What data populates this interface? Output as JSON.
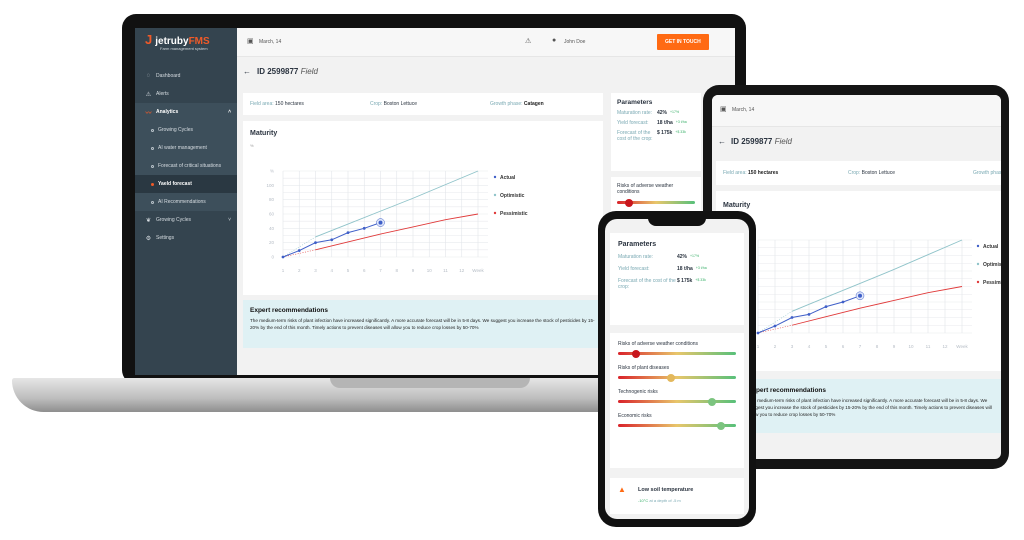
{
  "brand": {
    "name": "jetruby",
    "suffix": "FMS",
    "tagline": "Farm management system"
  },
  "sidebar": {
    "items": [
      {
        "label": "Dashboard",
        "icon": "dashboard-icon"
      },
      {
        "label": "Alerts",
        "icon": "alert-icon"
      },
      {
        "label": "Analytics",
        "icon": "analytics-icon"
      },
      {
        "label": "Growing Cycles"
      },
      {
        "label": "AI water management"
      },
      {
        "label": "Forecast of critical situations"
      },
      {
        "label": "Yaeld forecast"
      },
      {
        "label": "AI Recommendations"
      },
      {
        "label": "Growing Cycles",
        "icon": "leaf-icon"
      },
      {
        "label": "Settings",
        "icon": "gear-icon"
      }
    ]
  },
  "header": {
    "date": "March, 14",
    "user": "John Doe",
    "cta": "GET IN TOUCH"
  },
  "page": {
    "id": "ID 2599877",
    "type": "Field"
  },
  "info": {
    "area_label": "Field area:",
    "area": "150 hectares",
    "crop_label": "Crop:",
    "crop": "Boston Lettuce",
    "phase_label": "Growth phase:",
    "phase": "Catagen"
  },
  "maturity": {
    "title": "Maturity",
    "unit": "%"
  },
  "recommendations": {
    "title": "Expert recommendations",
    "text": "The medium-term risks of plant infection have increased significantly. A more accurate forecast will be in 5-8 days. We suggest you increase the stock of pesticides by 15-20% by the end of this month. Timely actions to prevent diseases will allow you to reduce crop losses by 50-70%"
  },
  "parameters": {
    "title": "Parameters",
    "rows": [
      {
        "label": "Maturation rate:",
        "value": "42%",
        "delta": "+17%"
      },
      {
        "label": "Yield forecast:",
        "value": "18 t/ha",
        "delta": "+3 t/ha"
      },
      {
        "label": "Forecast of the cost of the crop:",
        "value": "$ 175k",
        "delta": "+$ 33k"
      }
    ]
  },
  "risks": [
    {
      "label": "Risks of adverse weather conditions",
      "level": 0.15,
      "color": "#c8161d"
    },
    {
      "label": "Risks of plant diseases",
      "level": 0.45,
      "color": "#e3b85c"
    },
    {
      "label": "Technogenic risks",
      "level": 0.8,
      "color": "#7cc47f"
    },
    {
      "label": "Economic risks",
      "level": 0.87,
      "color": "#7cc47f"
    }
  ],
  "alert": {
    "title": "Low soil temperature",
    "value": "-10°C",
    "detail": "at a depth of -5 m"
  },
  "colors": {
    "accent": "#ff6a13",
    "sidebar": "#34444f",
    "actual": "#3f5fc8",
    "optimistic": "#8fc3c9",
    "pessimistic": "#e03a3a"
  },
  "chart_data": {
    "type": "line",
    "title": "Maturity",
    "ylabel": "%",
    "xlabel": "Week",
    "x_ticks": [
      "1",
      "2",
      "3",
      "4",
      "5",
      "6",
      "7",
      "8",
      "9",
      "10",
      "11",
      "12",
      "Week"
    ],
    "y_ticks": [
      0,
      20,
      40,
      60,
      80,
      100
    ],
    "ylim": [
      0,
      120
    ],
    "xlim": [
      1,
      13
    ],
    "grid": true,
    "legend": "right",
    "series": [
      {
        "name": "Actual",
        "color": "#3f5fc8",
        "x": [
          1,
          2,
          3,
          4,
          5,
          6,
          7
        ],
        "y": [
          0,
          9,
          20,
          24,
          34,
          40,
          48
        ]
      },
      {
        "name": "Optimistic",
        "color": "#8fc3c9",
        "x": [
          3,
          5,
          7,
          9,
          11,
          13
        ],
        "y": [
          28,
          46,
          64,
          82,
          101,
          120
        ]
      },
      {
        "name": "Pessimistic",
        "color": "#e03a3a",
        "x": [
          3,
          5,
          7,
          9,
          11,
          13
        ],
        "y": [
          10,
          21,
          32,
          42,
          52,
          60
        ]
      }
    ]
  }
}
